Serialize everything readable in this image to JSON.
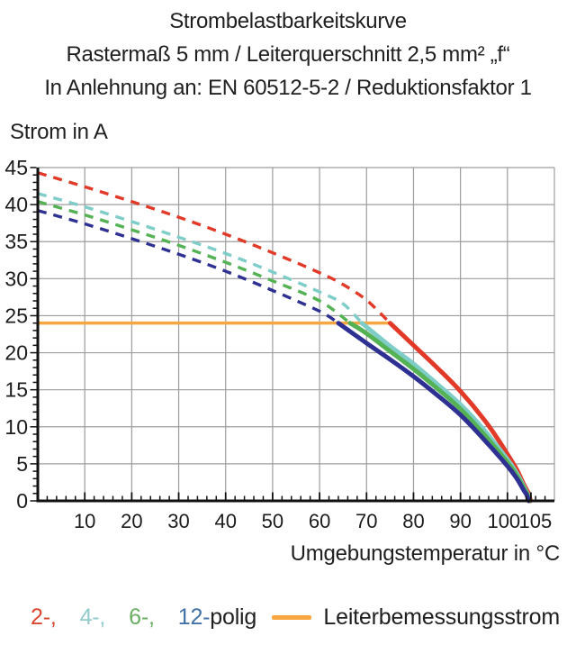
{
  "title": {
    "line1": "Strombelastbarkeitskurve",
    "line2": "Rastermaß 5 mm / Leiterquerschnitt 2,5 mm² „f“",
    "line3": "In Anlehnung an: EN 60512-5-2 / Reduktionsfaktor 1"
  },
  "legend": {
    "poles": [
      {
        "text": "2-,",
        "color": "#d9472f"
      },
      {
        "text": "4-,",
        "color": "#92cbcb"
      },
      {
        "text": "6-,",
        "color": "#68ae60"
      },
      {
        "text": "12-",
        "color": "#4272a8"
      }
    ],
    "suffix": "polig",
    "suffix_color": "#1f1f1f",
    "rated_label": "Leiterbemessungsstrom"
  },
  "chart_data": {
    "type": "line",
    "title": "Strombelastbarkeitskurve",
    "xlabel": "Umgebungstemperatur in °C",
    "ylabel": "Strom in A",
    "xlim": [
      0,
      110
    ],
    "ylim": [
      0,
      45
    ],
    "xticks": [
      10,
      20,
      30,
      40,
      50,
      60,
      70,
      80,
      90,
      100,
      105
    ],
    "yticks": [
      0,
      5,
      10,
      15,
      20,
      25,
      30,
      35,
      40,
      45
    ],
    "grid": true,
    "legend_position": "bottom",
    "grid_color": "#9d9d9d",
    "axis_color": "#111111",
    "rated_line": {
      "name": "Leiterbemessungsstrom",
      "color": "#f7a640",
      "value": 24,
      "x_range": [
        0,
        75.3
      ]
    },
    "series": [
      {
        "name": "2-polig",
        "color": "#e23a28",
        "style": "dashed-above-rated-then-solid",
        "dash_until": 75,
        "points": [
          [
            0,
            44.3
          ],
          [
            10,
            42.4
          ],
          [
            20,
            40.4
          ],
          [
            30,
            38.3
          ],
          [
            40,
            36.0
          ],
          [
            50,
            33.5
          ],
          [
            60,
            30.8
          ],
          [
            65,
            29.2
          ],
          [
            70,
            27.1
          ],
          [
            75,
            24.0
          ],
          [
            80,
            21.0
          ],
          [
            85,
            18.0
          ],
          [
            90,
            14.8
          ],
          [
            95,
            11.0
          ],
          [
            98,
            8.3
          ],
          [
            100,
            6.3
          ],
          [
            102,
            4.2
          ],
          [
            103.5,
            2.2
          ],
          [
            104.5,
            1.0
          ],
          [
            104.9,
            0
          ]
        ]
      },
      {
        "name": "4-polig",
        "color": "#7fcdc8",
        "style": "dashed-above-rated-then-solid",
        "dash_until": 69,
        "points": [
          [
            0,
            41.5
          ],
          [
            10,
            39.7
          ],
          [
            20,
            37.7
          ],
          [
            30,
            35.6
          ],
          [
            40,
            33.4
          ],
          [
            50,
            30.9
          ],
          [
            60,
            28.2
          ],
          [
            65,
            26.6
          ],
          [
            69,
            24.0
          ],
          [
            75,
            20.9
          ],
          [
            80,
            18.5
          ],
          [
            85,
            15.8
          ],
          [
            90,
            13.0
          ],
          [
            95,
            9.6
          ],
          [
            100,
            5.6
          ],
          [
            102,
            3.7
          ],
          [
            103.5,
            1.9
          ],
          [
            104.3,
            0.9
          ],
          [
            104.7,
            0
          ]
        ]
      },
      {
        "name": "6-polig",
        "color": "#54b254",
        "style": "dashed-above-rated-then-solid",
        "dash_until": 66.5,
        "points": [
          [
            0,
            40.4
          ],
          [
            10,
            38.6
          ],
          [
            20,
            36.6
          ],
          [
            30,
            34.5
          ],
          [
            40,
            32.2
          ],
          [
            50,
            29.7
          ],
          [
            60,
            27.0
          ],
          [
            66.5,
            24.0
          ],
          [
            70,
            22.6
          ],
          [
            75,
            20.2
          ],
          [
            80,
            17.8
          ],
          [
            85,
            15.2
          ],
          [
            90,
            12.4
          ],
          [
            95,
            9.0
          ],
          [
            100,
            5.2
          ],
          [
            102,
            3.4
          ],
          [
            103.5,
            1.7
          ],
          [
            104.2,
            0.9
          ],
          [
            104.6,
            0
          ]
        ]
      },
      {
        "name": "12-polig",
        "color": "#2e3192",
        "style": "dashed-above-rated-then-solid",
        "dash_until": 64,
        "points": [
          [
            0,
            39.2
          ],
          [
            10,
            37.4
          ],
          [
            20,
            35.4
          ],
          [
            30,
            33.3
          ],
          [
            40,
            31.0
          ],
          [
            50,
            28.4
          ],
          [
            60,
            25.6
          ],
          [
            64,
            24.0
          ],
          [
            70,
            21.3
          ],
          [
            75,
            19.1
          ],
          [
            80,
            16.8
          ],
          [
            85,
            14.3
          ],
          [
            90,
            11.6
          ],
          [
            95,
            8.3
          ],
          [
            100,
            4.7
          ],
          [
            102,
            3.0
          ],
          [
            103.5,
            1.4
          ],
          [
            104.1,
            0.8
          ],
          [
            104.5,
            0
          ]
        ]
      }
    ]
  }
}
